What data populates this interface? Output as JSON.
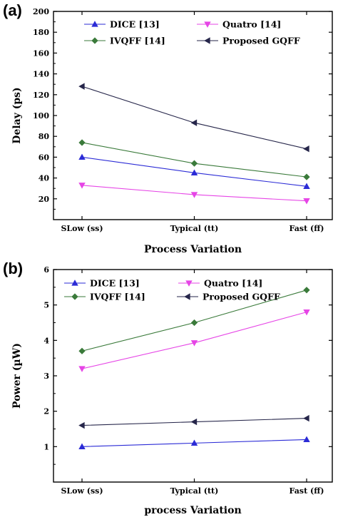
{
  "chart_data": [
    {
      "panel_label": "(a)",
      "type": "line",
      "categories": [
        "SLow (ss)",
        "Typical (tt)",
        "Fast (ff)"
      ],
      "xlabel": "Process Variation",
      "ylabel": "Delay (ps)",
      "ylim": [
        0,
        200
      ],
      "yticks": [
        20,
        40,
        60,
        80,
        100,
        120,
        140,
        160,
        180,
        200
      ],
      "grid": false,
      "legend_placement": "top-right",
      "series": [
        {
          "name": "DICE [13]",
          "values": [
            60,
            45,
            32
          ],
          "color": "#2b2bd6",
          "marker": "triangle-up"
        },
        {
          "name": "Quatro [14]",
          "values": [
            33,
            24,
            18
          ],
          "color": "#e645e6",
          "marker": "triangle-down"
        },
        {
          "name": "IVQFF [14]",
          "values": [
            74,
            54,
            41
          ],
          "color": "#3a7a3a",
          "marker": "diamond"
        },
        {
          "name": "Proposed GQFF",
          "values": [
            128,
            93,
            68
          ],
          "color": "#26264a",
          "marker": "triangle-left"
        }
      ]
    },
    {
      "panel_label": "(b)",
      "type": "line",
      "categories": [
        "SLow (ss)",
        "Typical (tt)",
        "Fast (ff)"
      ],
      "xlabel": "process Variation",
      "ylabel": "Power (µW)",
      "ylim": [
        0,
        6
      ],
      "yticks": [
        1,
        2,
        3,
        4,
        5,
        6
      ],
      "grid": false,
      "legend_placement": "top-left",
      "series": [
        {
          "name": "DICE [13]",
          "values": [
            1.0,
            1.1,
            1.2
          ],
          "color": "#2b2bd6",
          "marker": "triangle-up"
        },
        {
          "name": "Quatro [14]",
          "values": [
            3.2,
            3.93,
            4.8
          ],
          "color": "#e645e6",
          "marker": "triangle-down"
        },
        {
          "name": "IVQFF [14]",
          "values": [
            3.7,
            4.5,
            5.42
          ],
          "color": "#3a7a3a",
          "marker": "diamond"
        },
        {
          "name": "Proposed GQFF",
          "values": [
            1.6,
            1.7,
            1.8
          ],
          "color": "#26264a",
          "marker": "triangle-left"
        }
      ]
    }
  ]
}
